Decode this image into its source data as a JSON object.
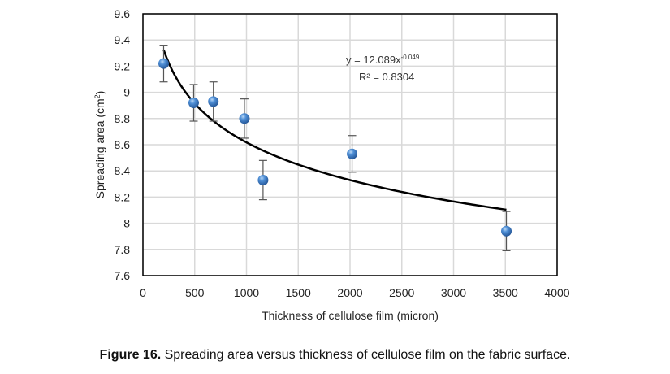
{
  "chart_data": {
    "type": "scatter",
    "title": "",
    "xlabel": "Thickness of cellulose film (micron)",
    "ylabel": "Spreading area (cm²)",
    "ylabel_base": "Spreading area  (cm",
    "ylabel_sup": "2",
    "ylabel_end": ")",
    "xlim": [
      0,
      4000
    ],
    "ylim": [
      7.6,
      9.6
    ],
    "xticks": [
      0,
      500,
      1000,
      1500,
      2000,
      2500,
      3000,
      3500,
      4000
    ],
    "xtick_labels": [
      "0",
      "500",
      "1000",
      "1500",
      "2000",
      "2500",
      "3000",
      "3500",
      "4000"
    ],
    "yticks": [
      7.6,
      7.8,
      8.0,
      8.2,
      8.4,
      8.6,
      8.8,
      9.0,
      9.2,
      9.4,
      9.6
    ],
    "ytick_labels": [
      "7.6",
      "7.8",
      "8",
      "8.2",
      "8.4",
      "8.6",
      "8.8",
      "9",
      "9.2",
      "9.4",
      "9.6"
    ],
    "grid": true,
    "series": [
      {
        "name": "Spreading area",
        "x": [
          200,
          490,
          680,
          980,
          1160,
          2020,
          3510
        ],
        "y": [
          9.22,
          8.92,
          8.93,
          8.8,
          8.33,
          8.53,
          7.94
        ],
        "error": [
          0.14,
          0.14,
          0.15,
          0.15,
          0.15,
          0.14,
          0.15
        ],
        "color": "#3a76c4"
      }
    ],
    "trendline": {
      "type": "power",
      "a": 12.089,
      "b": -0.049,
      "x_range": [
        200,
        3510
      ],
      "equation_label_base": "y = 12.089x",
      "equation_label_exp": "-0.049",
      "r2_label": "R² = 0.8304",
      "color": "#000000"
    }
  },
  "caption": {
    "label": "Figure 16.",
    "text": " Spreading area versus thickness of cellulose film on the fabric surface."
  }
}
